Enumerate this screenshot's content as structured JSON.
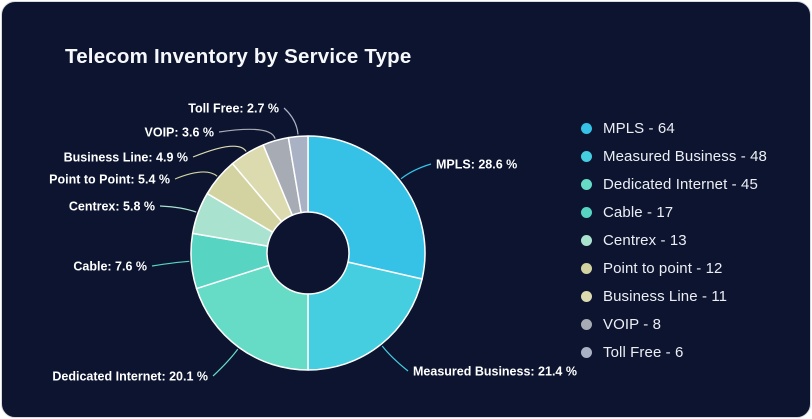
{
  "title": "Telecom Inventory by Service Type",
  "colors": {
    "card_background": "#0c142f",
    "page_background": "#ffffff",
    "title_text": "#f7f8fb",
    "label_text": "#ffffff",
    "legend_text": "#eceef4",
    "slice_stroke": "#ffffff"
  },
  "chart_data": {
    "type": "pie",
    "subtype": "donut",
    "title": "Telecom Inventory by Service Type",
    "legend_position": "right",
    "series": [
      {
        "name": "MPLS",
        "value": 64,
        "pct": 28.6,
        "slice_label": "MPLS: 28.6 %",
        "legend_label": "MPLS - 64",
        "color": "#36c2e7"
      },
      {
        "name": "Measured Business",
        "value": 48,
        "pct": 21.4,
        "slice_label": "Measured Business: 21.4 %",
        "legend_label": "Measured Business - 48",
        "color": "#45cde0"
      },
      {
        "name": "Dedicated Internet",
        "value": 45,
        "pct": 20.1,
        "slice_label": "Dedicated Internet: 20.1 %",
        "legend_label": "Dedicated Internet - 45",
        "color": "#66dcc6"
      },
      {
        "name": "Cable",
        "value": 17,
        "pct": 7.6,
        "slice_label": "Cable: 7.6 %",
        "legend_label": "Cable - 17",
        "color": "#58d4c2"
      },
      {
        "name": "Centrex",
        "value": 13,
        "pct": 5.8,
        "slice_label": "Centrex: 5.8 %",
        "legend_label": "Centrex - 13",
        "color": "#a9e2cf"
      },
      {
        "name": "Point to Point",
        "value": 12,
        "pct": 5.4,
        "slice_label": "Point to Point: 5.4 %",
        "legend_label": "Point to point - 12",
        "color": "#d3d3a1"
      },
      {
        "name": "Business Line",
        "value": 11,
        "pct": 4.9,
        "slice_label": "Business Line: 4.9 %",
        "legend_label": "Business Line - 11",
        "color": "#dcdbb0"
      },
      {
        "name": "VOIP",
        "value": 8,
        "pct": 3.6,
        "slice_label": "VOIP: 3.6 %",
        "legend_label": "VOIP - 8",
        "color": "#a7abb3"
      },
      {
        "name": "Toll Free",
        "value": 6,
        "pct": 2.7,
        "slice_label": "Toll Free: 2.7 %",
        "legend_label": "Toll Free - 6",
        "color": "#a9b1c4"
      }
    ]
  }
}
